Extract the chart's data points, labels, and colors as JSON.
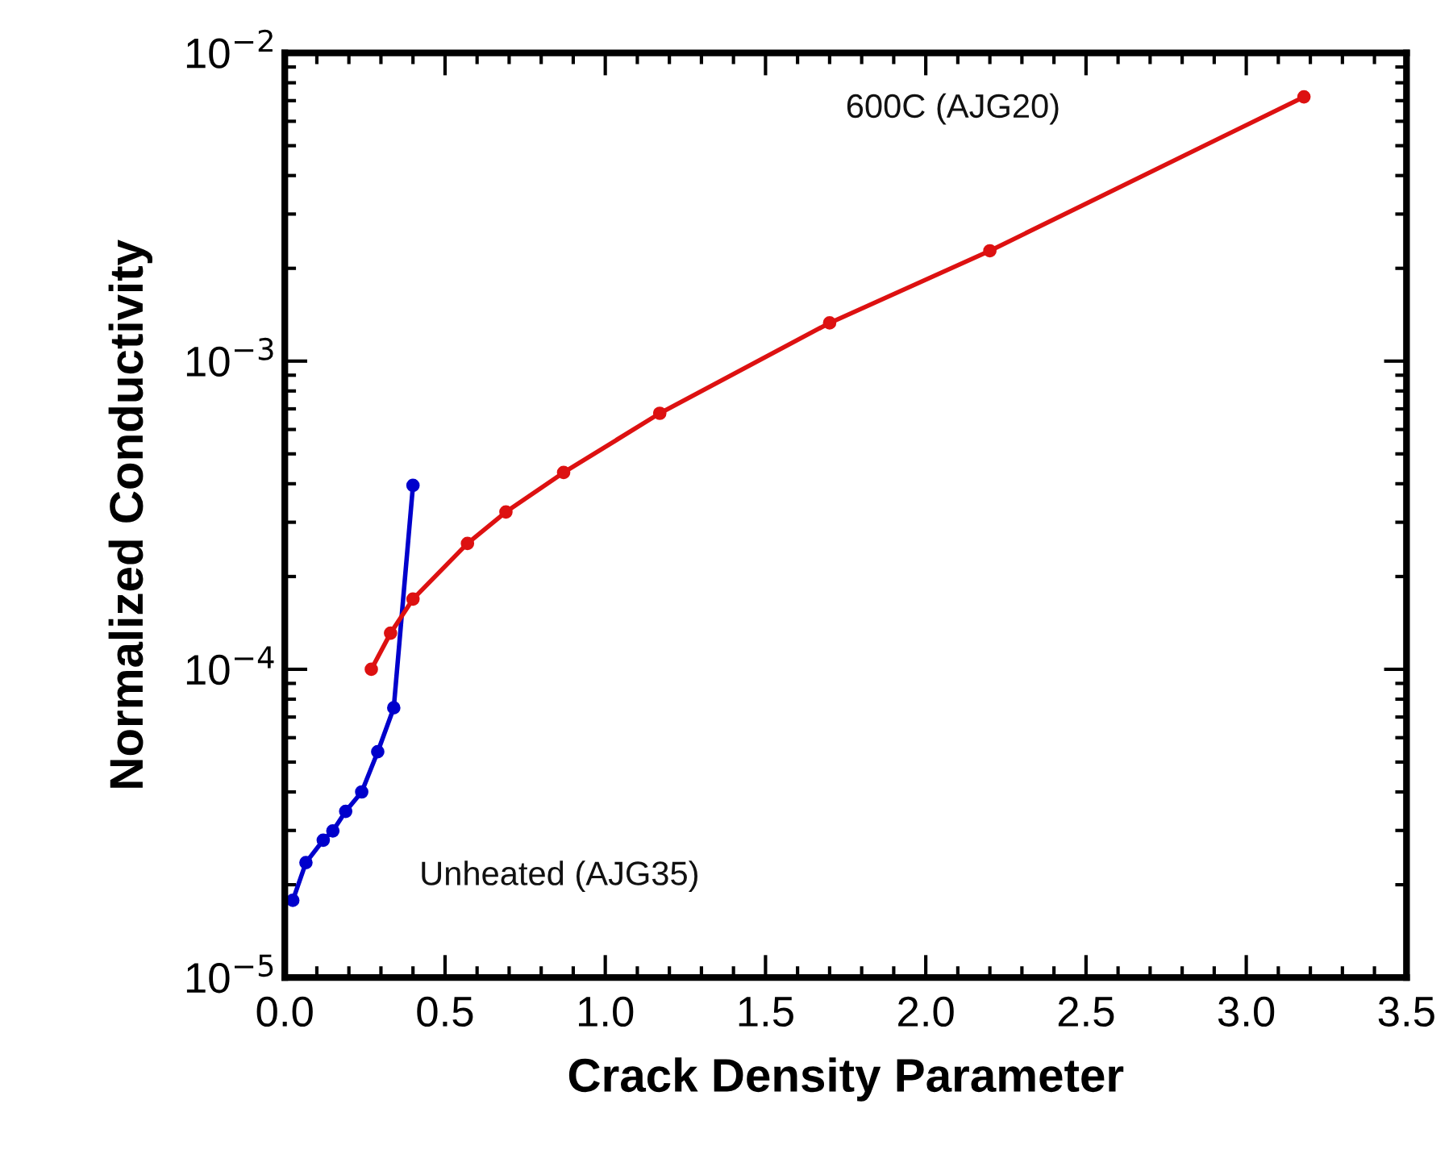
{
  "chart_data": {
    "type": "line",
    "xlabel": "Crack Density Parameter",
    "ylabel": "Normalized Conductivity",
    "log": "y",
    "xlim": [
      0.0,
      3.5
    ],
    "xticks": [
      {
        "value": 0.0,
        "label": "0.0"
      },
      {
        "value": 0.5,
        "label": "0.5"
      },
      {
        "value": 1.0,
        "label": "1.0"
      },
      {
        "value": 1.5,
        "label": "1.5"
      },
      {
        "value": 2.0,
        "label": "2.0"
      },
      {
        "value": 2.5,
        "label": "2.5"
      },
      {
        "value": 3.0,
        "label": "3.0"
      },
      {
        "value": 3.5,
        "label": "3.5"
      }
    ],
    "ylim": [
      1e-05,
      0.01
    ],
    "yticks": [
      {
        "value": 1e-05,
        "label": "10$^{−5}$"
      },
      {
        "value": 0.0001,
        "label": "10$^{−4}$"
      },
      {
        "value": 0.001,
        "label": "10$^{−3}$"
      },
      {
        "value": 0.01,
        "label": "10$^{−2}$"
      }
    ],
    "grid": false,
    "legend": false,
    "marker": "circle",
    "line_style": "solid",
    "series": [
      {
        "name": "Unheated (AJG35)",
        "color": "#0000cc",
        "x": [
          0.025,
          0.066,
          0.12,
          0.15,
          0.19,
          0.24,
          0.29,
          0.34,
          0.4
        ],
        "values": [
          1.78e-05,
          2.36e-05,
          2.79e-05,
          2.99e-05,
          3.46e-05,
          4e-05,
          5.4e-05,
          7.5e-05,
          0.000395
        ]
      },
      {
        "name": "600C (AJG20)",
        "color": "#dd1111",
        "x": [
          0.27,
          0.33,
          0.4,
          0.57,
          0.69,
          0.87,
          1.17,
          1.7,
          2.2,
          3.18
        ],
        "values": [
          0.0001,
          0.000131,
          0.000169,
          0.000256,
          0.000324,
          0.000435,
          0.000677,
          0.00133,
          0.00228,
          0.0072
        ]
      }
    ]
  }
}
